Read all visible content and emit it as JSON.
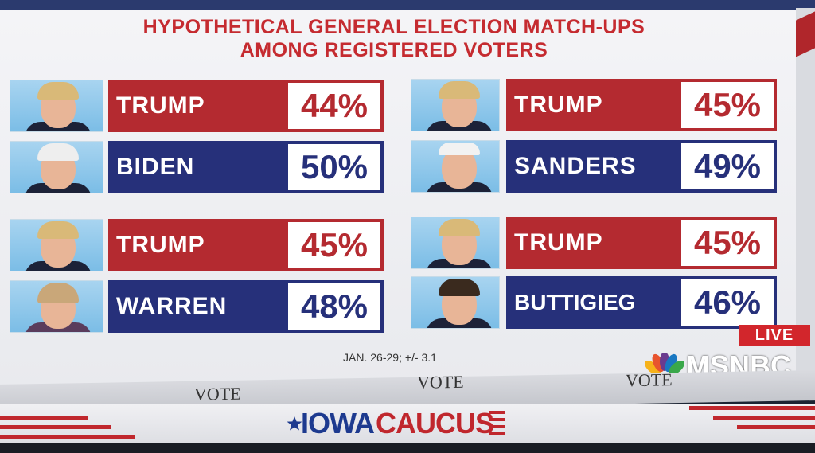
{
  "title": {
    "line1": "HYPOTHETICAL GENERAL ELECTION MATCH-UPS",
    "line2": "AMONG REGISTERED VOTERS"
  },
  "matchups": [
    {
      "rep": {
        "name": "TRUMP",
        "pct": "44%"
      },
      "dem": {
        "name": "BIDEN",
        "pct": "50%"
      }
    },
    {
      "rep": {
        "name": "TRUMP",
        "pct": "45%"
      },
      "dem": {
        "name": "SANDERS",
        "pct": "49%"
      }
    },
    {
      "rep": {
        "name": "TRUMP",
        "pct": "45%"
      },
      "dem": {
        "name": "WARREN",
        "pct": "48%"
      }
    },
    {
      "rep": {
        "name": "TRUMP",
        "pct": "45%"
      },
      "dem": {
        "name": "BUTTIGIEG",
        "pct": "46%"
      }
    }
  ],
  "footnote": "JAN. 26-29; +/- 3.1",
  "live_badge": "LIVE",
  "network": "MSNBC",
  "background_word": "VOTE",
  "banner": {
    "iowa": "IOWA",
    "caucus": "CAUCUS"
  },
  "colors": {
    "republican": "#b42a30",
    "democrat": "#26307a",
    "title": "#c52b30"
  }
}
